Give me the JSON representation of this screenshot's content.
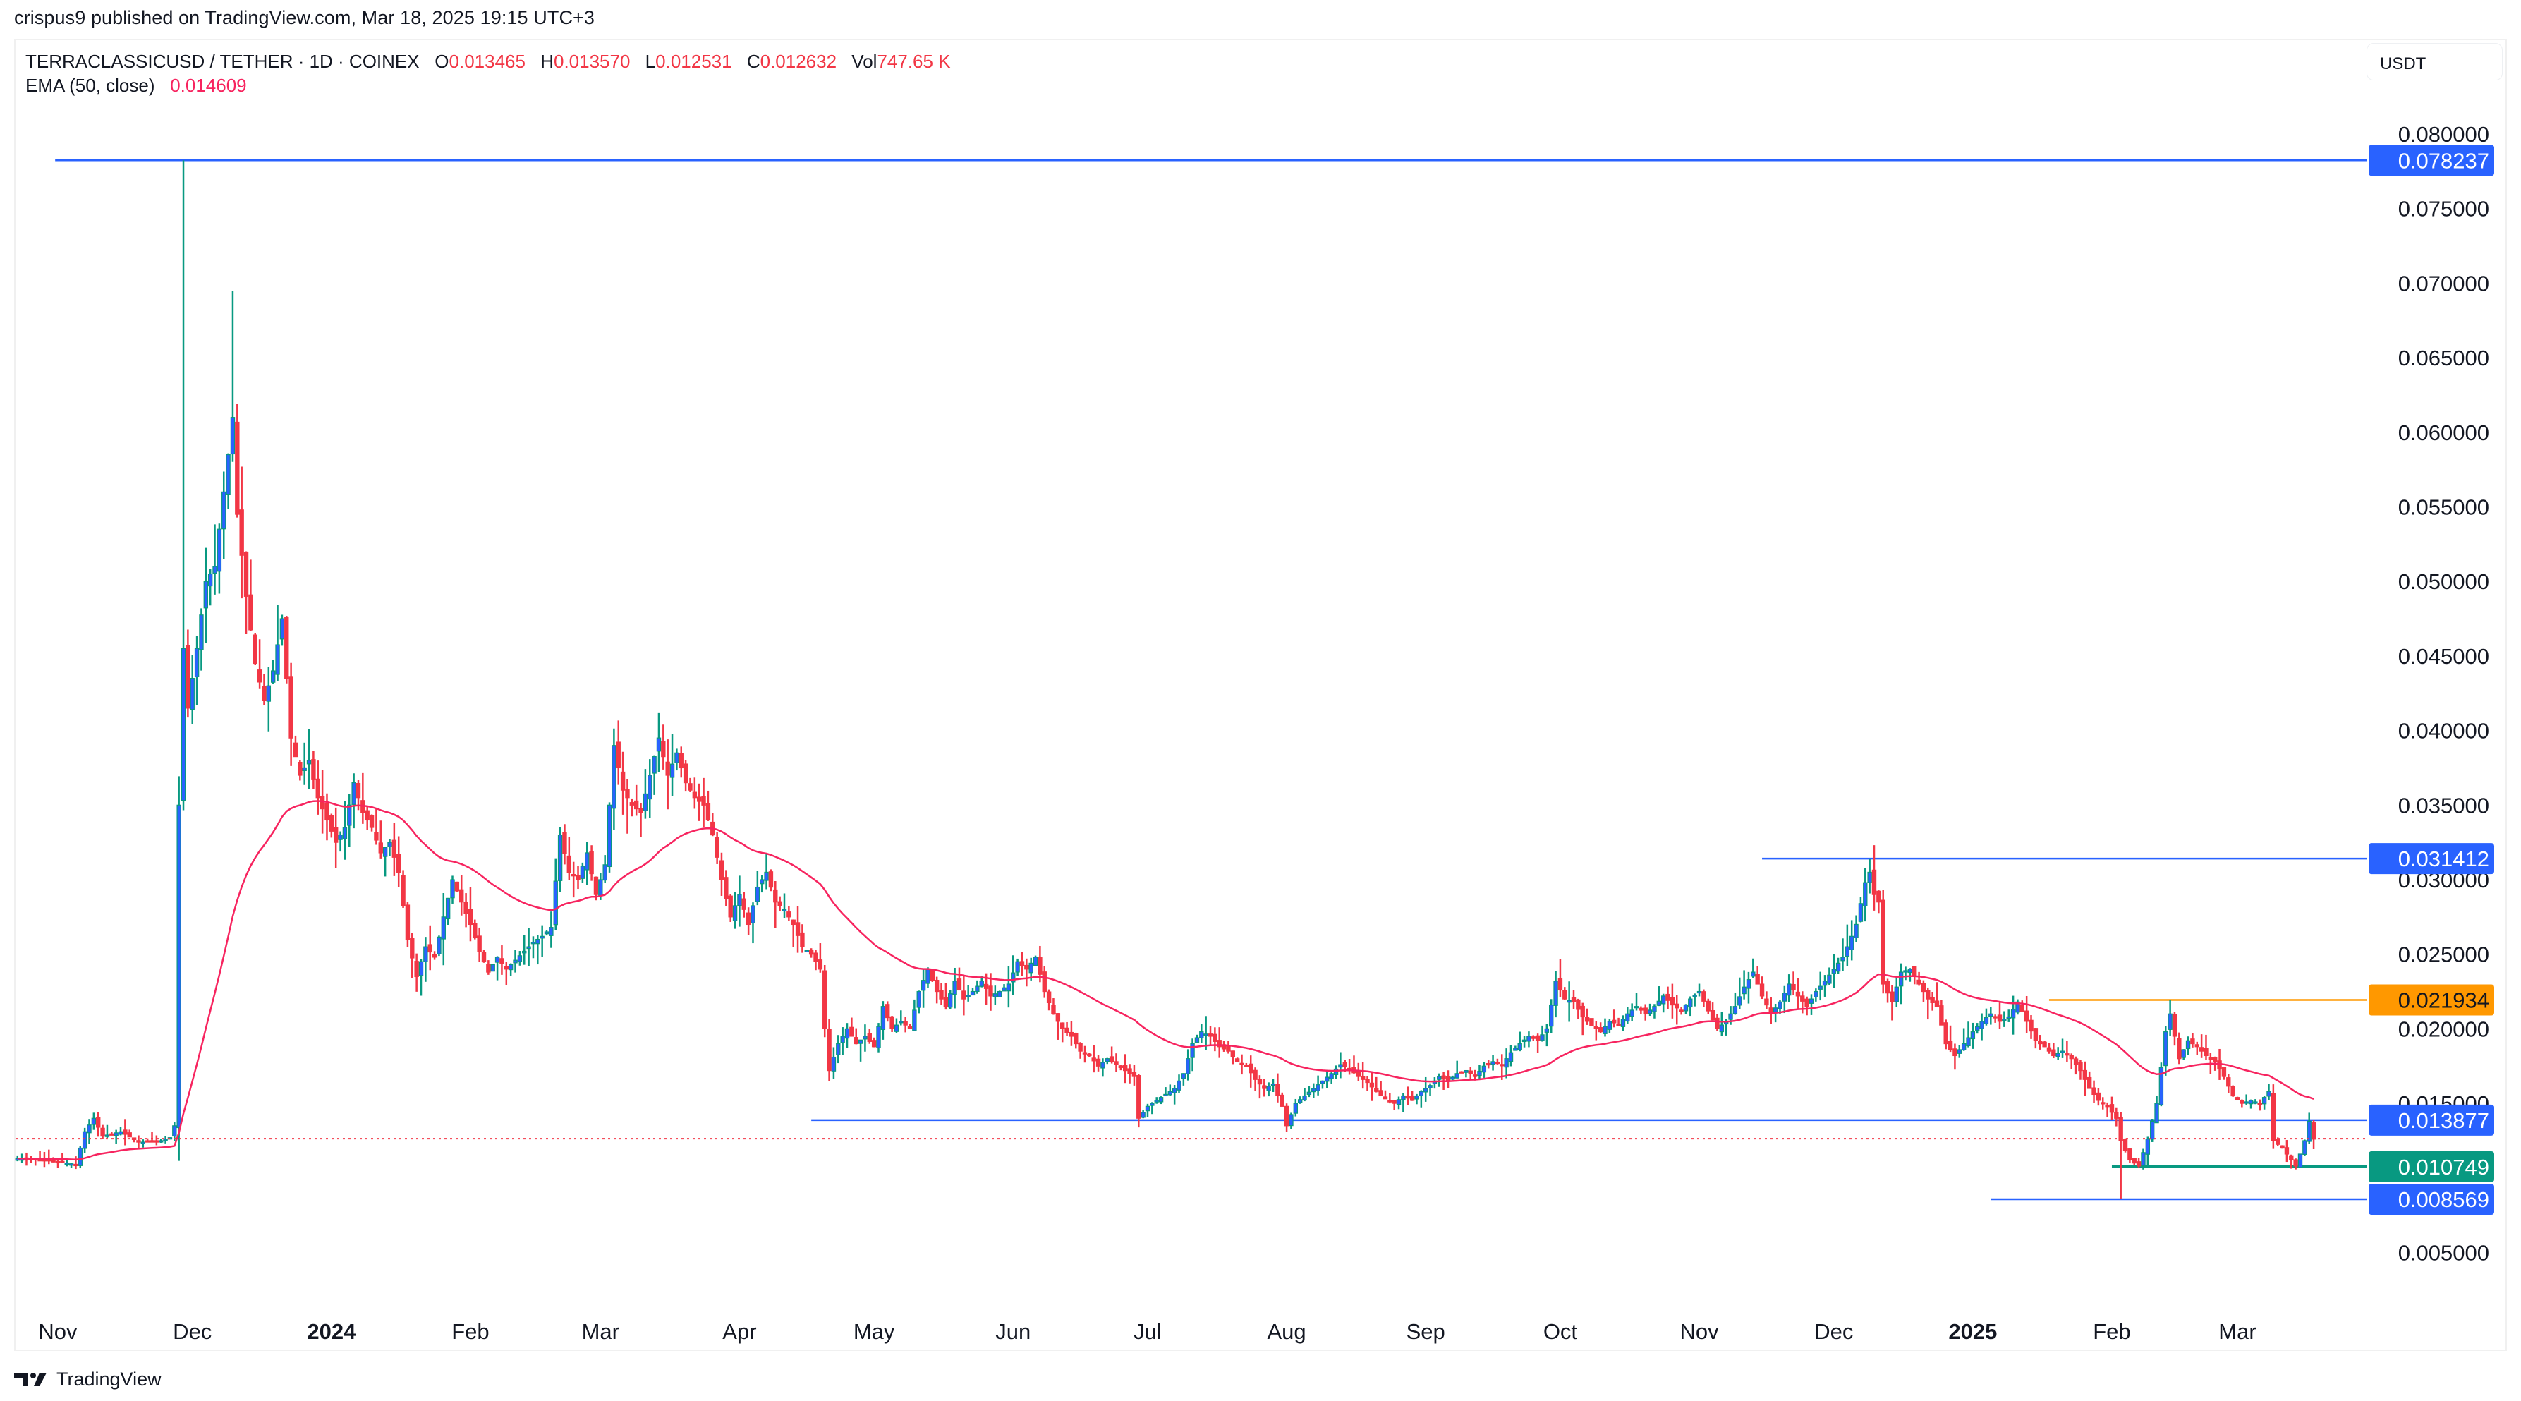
{
  "header": {
    "published": "crispus9 published on TradingView.com, Mar 18, 2025 19:15 UTC+3"
  },
  "legend": {
    "symbol": "TERRACLASSICUSD / TETHER · 1D · COINEX",
    "ohlcv": [
      {
        "label": "O",
        "value": "0.013465"
      },
      {
        "label": "H",
        "value": "0.013570"
      },
      {
        "label": "L",
        "value": "0.012531"
      },
      {
        "label": "C",
        "value": "0.012632"
      },
      {
        "label": "Vol",
        "value": "747.65 K"
      }
    ],
    "indicator": {
      "label": "EMA (50, close)",
      "value": "0.014609"
    }
  },
  "currency_button": {
    "label": "USDT"
  },
  "footer": {
    "logo_text": "TradingView",
    "logo_icon": "tradingview-logo-icon"
  },
  "colors": {
    "up_border": "#089981",
    "up_body": "#2962ff",
    "down": "#f23645",
    "ema": "#f7245f",
    "hline_blue": "#2962ff",
    "hline_orange": "#ff9800",
    "hline_green": "#089981",
    "last_price_dotted": "#f23645"
  },
  "chart_data": {
    "type": "candlestick",
    "title": "TERRACLASSICUSD / TETHER · 1D · COINEX",
    "xlabel": "",
    "ylabel": "USDT",
    "ylim": [
      0.0,
      0.0815
    ],
    "grid": false,
    "legend_position": "top-left",
    "y_ticks": [
      "0.080000",
      "0.075000",
      "0.070000",
      "0.065000",
      "0.060000",
      "0.055000",
      "0.050000",
      "0.045000",
      "0.040000",
      "0.035000",
      "0.030000",
      "0.025000",
      "0.020000",
      "0.015000",
      "0.005000"
    ],
    "x_ticks": [
      {
        "label": "Nov",
        "day": 0,
        "bold": false
      },
      {
        "label": "Dec",
        "day": 30,
        "bold": false
      },
      {
        "label": "2024",
        "day": 61,
        "bold": true
      },
      {
        "label": "Feb",
        "day": 92,
        "bold": false
      },
      {
        "label": "Mar",
        "day": 121,
        "bold": false
      },
      {
        "label": "Apr",
        "day": 152,
        "bold": false
      },
      {
        "label": "May",
        "day": 182,
        "bold": false
      },
      {
        "label": "Jun",
        "day": 213,
        "bold": false
      },
      {
        "label": "Jul",
        "day": 243,
        "bold": false
      },
      {
        "label": "Aug",
        "day": 274,
        "bold": false
      },
      {
        "label": "Sep",
        "day": 305,
        "bold": false
      },
      {
        "label": "Oct",
        "day": 335,
        "bold": false
      },
      {
        "label": "Nov",
        "day": 366,
        "bold": false
      },
      {
        "label": "Dec",
        "day": 396,
        "bold": false
      },
      {
        "label": "2025",
        "day": 427,
        "bold": true
      },
      {
        "label": "Feb",
        "day": 458,
        "bold": false
      },
      {
        "label": "Mar",
        "day": 486,
        "bold": false
      }
    ],
    "price_path_note": "approximate closing price waypoints [day_offset_from_Nov_1_2023, close]",
    "price_path": [
      [
        -9,
        0.0113
      ],
      [
        -2,
        0.0112
      ],
      [
        4,
        0.0109
      ],
      [
        6,
        0.0131
      ],
      [
        8,
        0.014
      ],
      [
        10,
        0.0128
      ],
      [
        14,
        0.0131
      ],
      [
        18,
        0.0124
      ],
      [
        22,
        0.0124
      ],
      [
        25,
        0.0127
      ],
      [
        26,
        0.0135
      ],
      [
        27,
        0.035
      ],
      [
        28,
        0.0455
      ],
      [
        29,
        0.0415
      ],
      [
        31,
        0.0455
      ],
      [
        33,
        0.05
      ],
      [
        35,
        0.051
      ],
      [
        37,
        0.056
      ],
      [
        39,
        0.061
      ],
      [
        40,
        0.0545
      ],
      [
        42,
        0.049
      ],
      [
        44,
        0.0445
      ],
      [
        46,
        0.042
      ],
      [
        48,
        0.044
      ],
      [
        50,
        0.0475
      ],
      [
        52,
        0.0395
      ],
      [
        54,
        0.037
      ],
      [
        56,
        0.038
      ],
      [
        58,
        0.0355
      ],
      [
        60,
        0.034
      ],
      [
        62,
        0.0325
      ],
      [
        64,
        0.0335
      ],
      [
        66,
        0.0365
      ],
      [
        68,
        0.0345
      ],
      [
        70,
        0.0335
      ],
      [
        72,
        0.0318
      ],
      [
        74,
        0.0325
      ],
      [
        76,
        0.0305
      ],
      [
        78,
        0.026
      ],
      [
        80,
        0.0235
      ],
      [
        82,
        0.0255
      ],
      [
        84,
        0.0248
      ],
      [
        86,
        0.0275
      ],
      [
        88,
        0.03
      ],
      [
        90,
        0.0285
      ],
      [
        92,
        0.027
      ],
      [
        94,
        0.0252
      ],
      [
        96,
        0.0238
      ],
      [
        98,
        0.0248
      ],
      [
        100,
        0.024
      ],
      [
        102,
        0.0246
      ],
      [
        104,
        0.0252
      ],
      [
        106,
        0.0258
      ],
      [
        108,
        0.0262
      ],
      [
        110,
        0.0268
      ],
      [
        112,
        0.033
      ],
      [
        114,
        0.0305
      ],
      [
        116,
        0.03
      ],
      [
        118,
        0.0318
      ],
      [
        120,
        0.029
      ],
      [
        122,
        0.031
      ],
      [
        124,
        0.039
      ],
      [
        126,
        0.036
      ],
      [
        128,
        0.035
      ],
      [
        130,
        0.0345
      ],
      [
        132,
        0.037
      ],
      [
        134,
        0.0395
      ],
      [
        136,
        0.037
      ],
      [
        138,
        0.0385
      ],
      [
        140,
        0.0365
      ],
      [
        142,
        0.0355
      ],
      [
        144,
        0.035
      ],
      [
        146,
        0.033
      ],
      [
        148,
        0.03
      ],
      [
        150,
        0.0275
      ],
      [
        152,
        0.029
      ],
      [
        154,
        0.027
      ],
      [
        156,
        0.0295
      ],
      [
        158,
        0.0305
      ],
      [
        160,
        0.0285
      ],
      [
        162,
        0.028
      ],
      [
        164,
        0.027
      ],
      [
        166,
        0.0255
      ],
      [
        168,
        0.025
      ],
      [
        170,
        0.024
      ],
      [
        171,
        0.02
      ],
      [
        172,
        0.0172
      ],
      [
        174,
        0.019
      ],
      [
        176,
        0.02
      ],
      [
        178,
        0.019
      ],
      [
        180,
        0.0195
      ],
      [
        182,
        0.0188
      ],
      [
        184,
        0.0215
      ],
      [
        186,
        0.02
      ],
      [
        188,
        0.0205
      ],
      [
        190,
        0.02
      ],
      [
        192,
        0.0225
      ],
      [
        194,
        0.024
      ],
      [
        196,
        0.0225
      ],
      [
        198,
        0.0215
      ],
      [
        200,
        0.0232
      ],
      [
        202,
        0.022
      ],
      [
        204,
        0.0225
      ],
      [
        206,
        0.0232
      ],
      [
        208,
        0.0222
      ],
      [
        210,
        0.0225
      ],
      [
        212,
        0.023
      ],
      [
        214,
        0.0245
      ],
      [
        216,
        0.024
      ],
      [
        218,
        0.0248
      ],
      [
        220,
        0.0225
      ],
      [
        222,
        0.021
      ],
      [
        224,
        0.02
      ],
      [
        226,
        0.0195
      ],
      [
        228,
        0.0185
      ],
      [
        230,
        0.0182
      ],
      [
        232,
        0.0175
      ],
      [
        234,
        0.018
      ],
      [
        236,
        0.0176
      ],
      [
        238,
        0.0172
      ],
      [
        240,
        0.0168
      ],
      [
        241,
        0.014
      ],
      [
        243,
        0.0148
      ],
      [
        245,
        0.0152
      ],
      [
        247,
        0.0156
      ],
      [
        249,
        0.016
      ],
      [
        251,
        0.017
      ],
      [
        253,
        0.019
      ],
      [
        255,
        0.0198
      ],
      [
        257,
        0.0195
      ],
      [
        259,
        0.0188
      ],
      [
        261,
        0.0185
      ],
      [
        263,
        0.0178
      ],
      [
        265,
        0.0175
      ],
      [
        267,
        0.0166
      ],
      [
        269,
        0.016
      ],
      [
        271,
        0.0163
      ],
      [
        273,
        0.0148
      ],
      [
        274,
        0.0135
      ],
      [
        276,
        0.015
      ],
      [
        278,
        0.0155
      ],
      [
        280,
        0.016
      ],
      [
        282,
        0.0165
      ],
      [
        284,
        0.017
      ],
      [
        286,
        0.0176
      ],
      [
        288,
        0.0173
      ],
      [
        290,
        0.0168
      ],
      [
        292,
        0.0164
      ],
      [
        294,
        0.0158
      ],
      [
        296,
        0.0153
      ],
      [
        298,
        0.015
      ],
      [
        300,
        0.0155
      ],
      [
        302,
        0.0152
      ],
      [
        304,
        0.0158
      ],
      [
        306,
        0.0162
      ],
      [
        308,
        0.0168
      ],
      [
        310,
        0.0165
      ],
      [
        312,
        0.017
      ],
      [
        314,
        0.0172
      ],
      [
        316,
        0.0168
      ],
      [
        318,
        0.0175
      ],
      [
        320,
        0.0178
      ],
      [
        322,
        0.0176
      ],
      [
        324,
        0.0184
      ],
      [
        326,
        0.019
      ],
      [
        328,
        0.0195
      ],
      [
        330,
        0.0192
      ],
      [
        332,
        0.02
      ],
      [
        334,
        0.0232
      ],
      [
        336,
        0.022
      ],
      [
        338,
        0.0218
      ],
      [
        340,
        0.0208
      ],
      [
        342,
        0.0202
      ],
      [
        344,
        0.0198
      ],
      [
        346,
        0.0205
      ],
      [
        348,
        0.0203
      ],
      [
        350,
        0.021
      ],
      [
        352,
        0.0215
      ],
      [
        354,
        0.021
      ],
      [
        356,
        0.0215
      ],
      [
        358,
        0.0222
      ],
      [
        360,
        0.0216
      ],
      [
        362,
        0.0212
      ],
      [
        364,
        0.022
      ],
      [
        366,
        0.0225
      ],
      [
        368,
        0.0212
      ],
      [
        370,
        0.02
      ],
      [
        372,
        0.0205
      ],
      [
        374,
        0.0215
      ],
      [
        376,
        0.0228
      ],
      [
        378,
        0.0238
      ],
      [
        380,
        0.0222
      ],
      [
        382,
        0.021
      ],
      [
        384,
        0.0218
      ],
      [
        386,
        0.023
      ],
      [
        388,
        0.0222
      ],
      [
        390,
        0.0215
      ],
      [
        392,
        0.0225
      ],
      [
        394,
        0.0232
      ],
      [
        396,
        0.024
      ],
      [
        398,
        0.0248
      ],
      [
        400,
        0.0262
      ],
      [
        401,
        0.027
      ],
      [
        403,
        0.0298
      ],
      [
        404,
        0.0305
      ],
      [
        405,
        0.029
      ],
      [
        406,
        0.0285
      ],
      [
        407,
        0.023
      ],
      [
        409,
        0.0218
      ],
      [
        411,
        0.0238
      ],
      [
        413,
        0.024
      ],
      [
        415,
        0.023
      ],
      [
        417,
        0.022
      ],
      [
        419,
        0.0215
      ],
      [
        421,
        0.019
      ],
      [
        423,
        0.0182
      ],
      [
        425,
        0.019
      ],
      [
        427,
        0.0198
      ],
      [
        429,
        0.0205
      ],
      [
        431,
        0.021
      ],
      [
        433,
        0.0205
      ],
      [
        435,
        0.0208
      ],
      [
        437,
        0.0218
      ],
      [
        439,
        0.0205
      ],
      [
        441,
        0.0192
      ],
      [
        443,
        0.0188
      ],
      [
        445,
        0.0182
      ],
      [
        447,
        0.0185
      ],
      [
        449,
        0.018
      ],
      [
        451,
        0.0172
      ],
      [
        453,
        0.016
      ],
      [
        455,
        0.0152
      ],
      [
        457,
        0.0148
      ],
      [
        459,
        0.014
      ],
      [
        460,
        0.0125
      ],
      [
        462,
        0.0112
      ],
      [
        464,
        0.0108
      ],
      [
        466,
        0.0126
      ],
      [
        468,
        0.015
      ],
      [
        470,
        0.0198
      ],
      [
        471,
        0.021
      ],
      [
        473,
        0.018
      ],
      [
        475,
        0.0192
      ],
      [
        477,
        0.0188
      ],
      [
        479,
        0.0182
      ],
      [
        481,
        0.0178
      ],
      [
        483,
        0.0168
      ],
      [
        485,
        0.0155
      ],
      [
        487,
        0.015
      ],
      [
        489,
        0.0152
      ],
      [
        491,
        0.015
      ],
      [
        493,
        0.0158
      ],
      [
        494,
        0.0125
      ],
      [
        496,
        0.012
      ],
      [
        498,
        0.0112
      ],
      [
        499,
        0.0108
      ],
      [
        500,
        0.0116
      ],
      [
        501,
        0.0125
      ],
      [
        502,
        0.0138
      ],
      [
        503,
        0.0126
      ]
    ],
    "ema_label": "EMA (50, close)",
    "ema_last": 0.014609,
    "horizontal_lines": [
      {
        "value": 0.078237,
        "label": "0.078237",
        "color": "#2962ff",
        "start_day": -0.6
      },
      {
        "value": 0.031412,
        "label": "0.031412",
        "color": "#2962ff",
        "start_day": 380
      },
      {
        "value": 0.021934,
        "label": "0.021934",
        "color": "#ff9800",
        "start_day": 444
      },
      {
        "value": 0.013877,
        "label": "0.013877",
        "color": "#2962ff",
        "start_day": 168
      },
      {
        "value": 0.010749,
        "label": "0.010749",
        "color": "#089981",
        "start_day": 458
      },
      {
        "value": 0.008569,
        "label": "0.008569",
        "color": "#2962ff",
        "start_day": 431
      }
    ],
    "last_price": {
      "value": 0.012632,
      "style": "dotted",
      "color": "#f23645"
    },
    "annotations": {
      "all_time_high_wick": 0.078237,
      "dec_2024_high": 0.031412,
      "feb_2025_high": 0.021934,
      "support": 0.013877,
      "recent_low": 0.010749,
      "feb_2025_low": 0.008569
    }
  }
}
